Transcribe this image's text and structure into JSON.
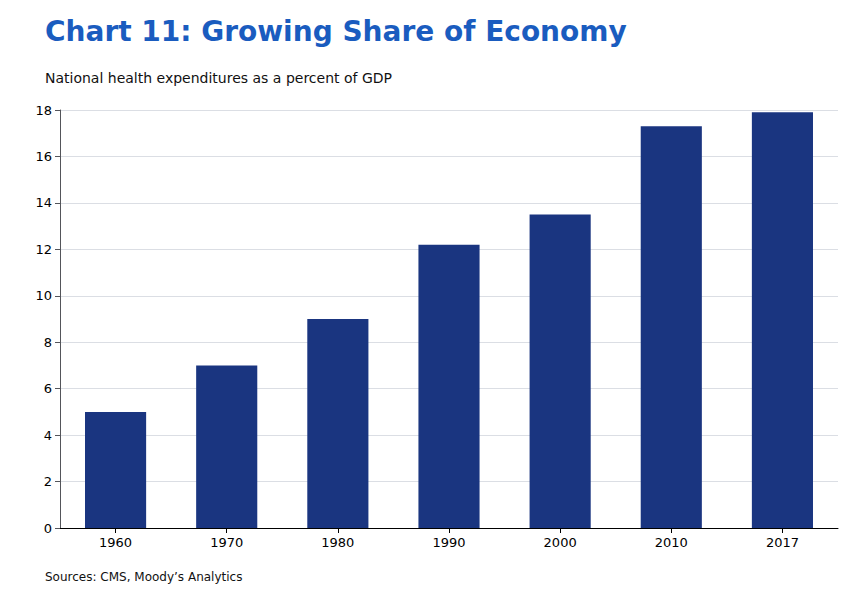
{
  "chart_data": {
    "type": "bar",
    "title": "Chart 11: Growing Share of Economy",
    "subtitle": "National health expenditures as a percent of GDP",
    "source": "Sources: CMS, Moody’s Analytics",
    "categories": [
      "1960",
      "1970",
      "1980",
      "1990",
      "2000",
      "2010",
      "2017"
    ],
    "values": [
      5.0,
      7.0,
      9.0,
      12.2,
      13.5,
      17.3,
      17.9
    ],
    "color": "#1a3580",
    "ylim": [
      0,
      18
    ],
    "yticks": [
      0,
      2,
      4,
      6,
      8,
      10,
      12,
      14,
      16,
      18
    ],
    "grid": true
  }
}
